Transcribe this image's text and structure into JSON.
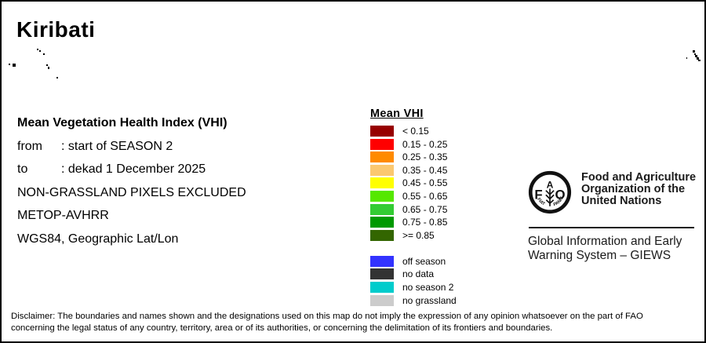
{
  "title": "Kiribati",
  "info": {
    "heading": "Mean Vegetation Health Index (VHI)",
    "lines": [
      {
        "label": "from",
        "value": ": start of SEASON 2"
      },
      {
        "label": "to",
        "value": ": dekad 1 December 2025"
      }
    ],
    "notes": [
      "NON-GRASSLAND PIXELS EXCLUDED",
      "METOP-AVHRR",
      "WGS84, Geographic Lat/Lon"
    ]
  },
  "legend": {
    "title": "Mean VHI",
    "classes": [
      {
        "label": "< 0.15",
        "color": "#970000"
      },
      {
        "label": "0.15 - 0.25",
        "color": "#FF0000"
      },
      {
        "label": "0.25 - 0.35",
        "color": "#FF8A00"
      },
      {
        "label": "0.35 - 0.45",
        "color": "#FBC870"
      },
      {
        "label": "0.45 - 0.55",
        "color": "#FFFF00"
      },
      {
        "label": "0.55 - 0.65",
        "color": "#55E800"
      },
      {
        "label": "0.65 - 0.75",
        "color": "#33CC33"
      },
      {
        "label": "0.75 - 0.85",
        "color": "#009900"
      },
      {
        "label": ">= 0.85",
        "color": "#336600"
      }
    ],
    "extra_classes": [
      {
        "label": "off season",
        "color": "#3333FF"
      },
      {
        "label": "no data",
        "color": "#333333"
      },
      {
        "label": "no season 2",
        "color": "#00CCCC"
      },
      {
        "label": "no grassland",
        "color": "#CCCCCC"
      }
    ]
  },
  "org": {
    "logo_letters": {
      "f": "F",
      "a": "A",
      "o": "O"
    },
    "logo_motto_left": "FIAT",
    "logo_motto_right": "PANIS",
    "name_lines": [
      "Food and Agriculture",
      "Organization of the",
      "United Nations"
    ],
    "system_lines": [
      "Global Information and Early",
      "Warning System – GIEWS"
    ]
  },
  "disclaimer_lines": [
    "Disclaimer: The boundaries and names shown and the designations used on this map do not imply the expression of any opinion whatsoever on the part of FAO",
    "concerning the legal status of any country, territory, area or of its authorities, or concerning the delimitation of its frontiers and boundaries."
  ],
  "map": {
    "island_color": "#000000",
    "islands": [
      [
        45,
        60,
        2,
        2
      ],
      [
        48,
        62,
        2,
        2
      ],
      [
        53,
        66,
        2,
        2
      ],
      [
        9,
        79,
        2,
        2
      ],
      [
        14,
        79,
        4,
        4
      ],
      [
        57,
        80,
        2,
        2
      ],
      [
        59,
        83,
        2,
        3
      ],
      [
        70,
        96,
        2,
        2
      ],
      [
        873,
        71,
        1,
        2
      ],
      [
        881,
        62,
        3,
        3
      ],
      [
        883,
        66,
        2,
        2
      ],
      [
        884,
        68,
        3,
        3
      ],
      [
        886,
        71,
        3,
        3
      ],
      [
        888,
        74,
        3,
        2
      ]
    ]
  }
}
